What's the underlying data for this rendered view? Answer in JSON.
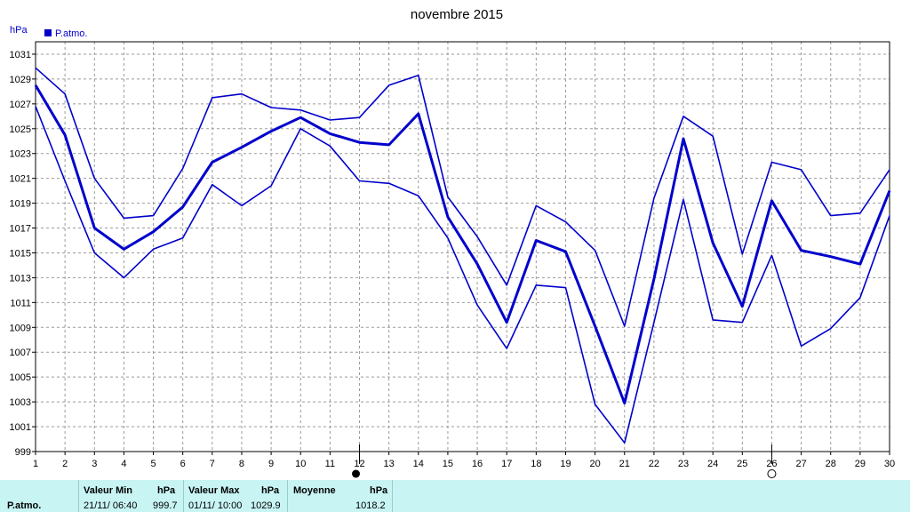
{
  "chart_data": {
    "type": "line",
    "title": "novembre 2015",
    "ylabel": "hPa",
    "legend": {
      "label": "P.atmo.",
      "placement": "top-left",
      "color": "#0000cc"
    },
    "ylim": [
      999,
      1032
    ],
    "yticks": [
      999,
      1001,
      1003,
      1005,
      1007,
      1009,
      1011,
      1013,
      1015,
      1017,
      1019,
      1021,
      1023,
      1025,
      1027,
      1029,
      1031
    ],
    "x": [
      1,
      2,
      3,
      4,
      5,
      6,
      7,
      8,
      9,
      10,
      11,
      12,
      13,
      14,
      15,
      16,
      17,
      18,
      19,
      20,
      21,
      22,
      23,
      24,
      25,
      26,
      27,
      28,
      29,
      30
    ],
    "grid": true,
    "line_color": "#0000cc",
    "moon_markers": [
      {
        "day": 12,
        "phase": "new-moon"
      },
      {
        "day": 26,
        "phase": "full-moon"
      }
    ],
    "series": [
      {
        "values": [
          1029.9,
          1027.8,
          1021.0,
          1017.8,
          1018.0,
          1021.8,
          1027.5,
          1027.8,
          1026.7,
          1026.5,
          1025.7,
          1025.9,
          1028.5,
          1029.3,
          1019.5,
          1016.3,
          1012.4,
          1018.8,
          1017.5,
          1015.2,
          1009.1,
          1019.4,
          1026.0,
          1024.4,
          1014.9,
          1022.3,
          1021.7,
          1018.0,
          1018.2,
          1021.7
        ]
      },
      {
        "values": [
          1028.5,
          1024.5,
          1017.0,
          1015.3,
          1016.7,
          1018.7,
          1022.3,
          1023.5,
          1024.8,
          1025.9,
          1024.6,
          1023.9,
          1023.7,
          1026.2,
          1017.9,
          1014.1,
          1009.4,
          1016.0,
          1015.1,
          1009.1,
          1002.9,
          1012.9,
          1024.2,
          1015.8,
          1010.7,
          1019.2,
          1015.2,
          1014.7,
          1014.1,
          1020.0
        ]
      },
      {
        "values": [
          1026.8,
          1020.8,
          1015.0,
          1013.0,
          1015.3,
          1016.2,
          1020.5,
          1018.8,
          1020.4,
          1025.0,
          1023.6,
          1020.8,
          1020.6,
          1019.6,
          1016.2,
          1010.8,
          1007.3,
          1012.4,
          1012.2,
          1002.8,
          999.7,
          1009.4,
          1019.3,
          1009.6,
          1009.4,
          1014.8,
          1007.5,
          1008.9,
          1011.4,
          1018.0
        ]
      }
    ]
  },
  "stats": {
    "row_label": "P.atmo.",
    "min_header": "Valeur Min",
    "min_unit": "hPa",
    "min_time": "21/11/  06:40",
    "min_value": "999.7",
    "max_header": "Valeur Max",
    "max_unit": "hPa",
    "max_time": "01/11/  10:00",
    "max_value": "1029.9",
    "avg_header": "Moyenne",
    "avg_unit": "hPa",
    "avg_value": "1018.2"
  }
}
